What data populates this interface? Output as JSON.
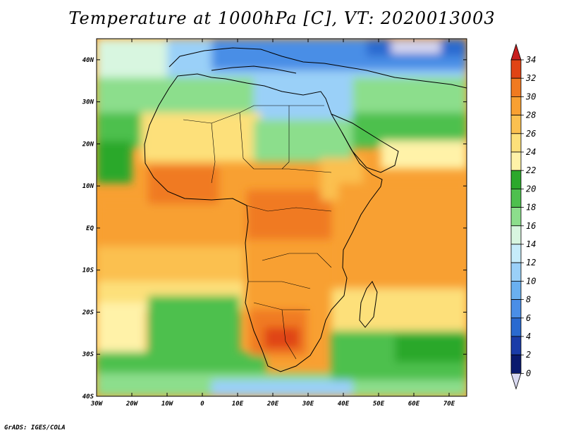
{
  "title": "Temperature at 1000hPa [C], VT: 2020013003",
  "footer": "GrADS: IGES/COLA",
  "map": {
    "x_ticks": [
      "30W",
      "20W",
      "10W",
      "0",
      "10E",
      "20E",
      "30E",
      "40E",
      "50E",
      "60E",
      "70E"
    ],
    "y_ticks": [
      "40N",
      "30N",
      "20N",
      "10N",
      "EQ",
      "10S",
      "20S",
      "30S",
      "40S"
    ],
    "lon_range": [
      -30,
      75
    ],
    "lat_range": [
      -40,
      45
    ]
  },
  "colorbar": {
    "labels": [
      "34",
      "32",
      "30",
      "28",
      "26",
      "24",
      "22",
      "20",
      "18",
      "16",
      "14",
      "12",
      "10",
      "8",
      "6",
      "4",
      "2",
      "0"
    ],
    "colors": [
      "#d8d8f0",
      "#0a1a6e",
      "#1a3ca8",
      "#2a6ad0",
      "#4a8ee6",
      "#6ab0f0",
      "#9ad0f8",
      "#c6ecfa",
      "#d8f6e0",
      "#8cde8c",
      "#4ec04e",
      "#2ca82c",
      "#fff2a8",
      "#fde07a",
      "#fbc050",
      "#f8a032",
      "#f07a20",
      "#e04414",
      "#c81e1e"
    ]
  }
}
